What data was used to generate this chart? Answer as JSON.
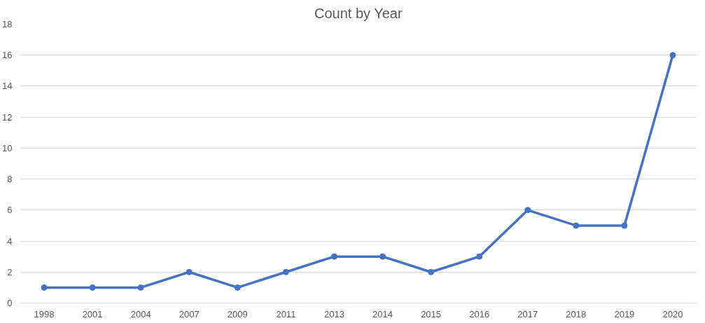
{
  "chart_data": {
    "type": "line",
    "title": "Count by Year",
    "categories": [
      "1998",
      "2001",
      "2004",
      "2007",
      "2009",
      "2011",
      "2013",
      "2014",
      "2015",
      "2016",
      "2017",
      "2018",
      "2019",
      "2020"
    ],
    "series": [
      {
        "color": "#4472c4",
        "values": [
          1,
          1,
          1,
          2,
          1,
          2,
          3,
          3,
          2,
          3,
          6,
          5,
          5,
          16
        ]
      }
    ],
    "ylim": [
      0,
      18
    ],
    "yticks": [
      0,
      2,
      4,
      6,
      8,
      10,
      12,
      14,
      16,
      18
    ],
    "grid": "y",
    "marker": "circle",
    "line_style": "solid"
  }
}
